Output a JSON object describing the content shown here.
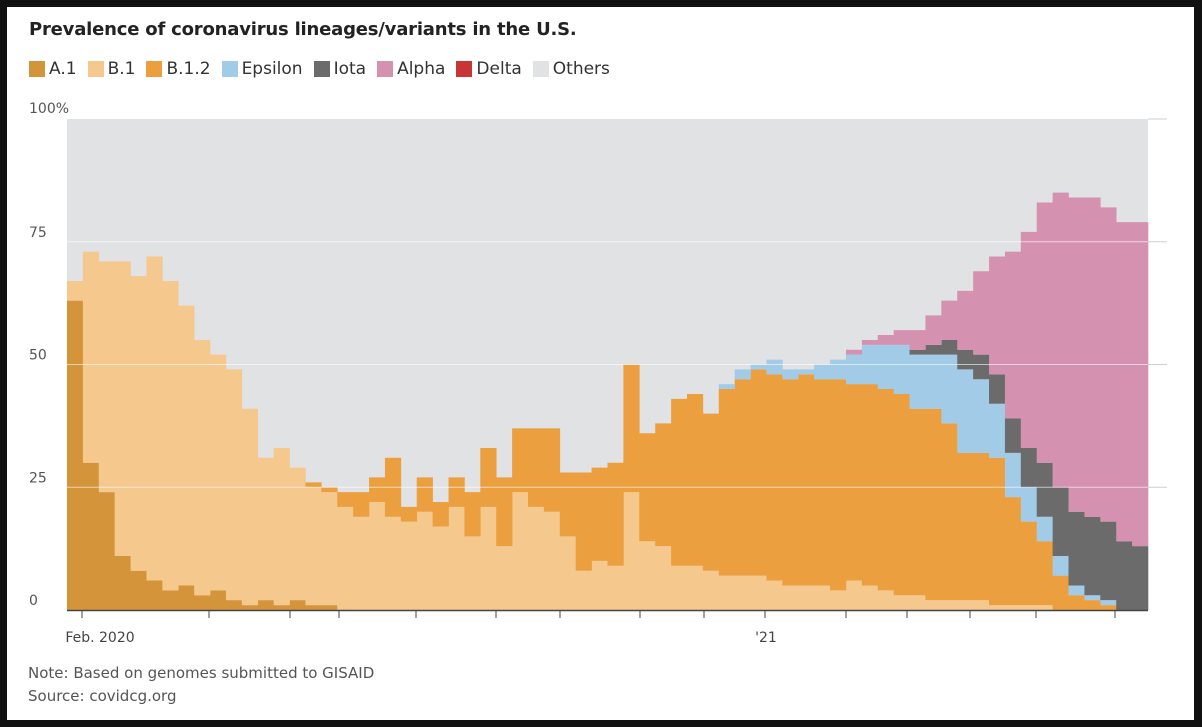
{
  "chart_data": {
    "type": "area",
    "title": "Prevalence of coronavirus lineages/variants in the U.S.",
    "x_tick_labels": [
      "Feb. 2020",
      "'21"
    ],
    "y_ticks": [
      {
        "value": 0,
        "label": "0"
      },
      {
        "value": 25,
        "label": "25"
      },
      {
        "value": 50,
        "label": "50"
      },
      {
        "value": 75,
        "label": "75"
      },
      {
        "value": 100,
        "label": "100%"
      }
    ],
    "ylim": [
      0,
      100
    ],
    "grid": true,
    "legend_position": "top-left",
    "series": [
      {
        "name": "A.1",
        "color": "#d4953a",
        "values": [
          63,
          30,
          24,
          11,
          8,
          6,
          4,
          5,
          3,
          4,
          2,
          1,
          2,
          1,
          2,
          1,
          1,
          0,
          0,
          0,
          0,
          0,
          0,
          0,
          0,
          0,
          0,
          0,
          0,
          0,
          0,
          0,
          0,
          0,
          0,
          0,
          0,
          0,
          0,
          0,
          0,
          0,
          0,
          0,
          0,
          0,
          0,
          0,
          0,
          0,
          0,
          0,
          0,
          0,
          0,
          0,
          0,
          0,
          0,
          0,
          0,
          0,
          0,
          0,
          0,
          0,
          0,
          0
        ]
      },
      {
        "name": "B.1",
        "color": "#f5c88d",
        "values": [
          4,
          43,
          47,
          60,
          60,
          66,
          63,
          57,
          52,
          48,
          47,
          40,
          29,
          32,
          27,
          24,
          23,
          21,
          19,
          22,
          19,
          18,
          20,
          17,
          21,
          15,
          21,
          13,
          24,
          21,
          20,
          15,
          8,
          10,
          9,
          24,
          14,
          13,
          9,
          9,
          8,
          7,
          7,
          7,
          6,
          5,
          5,
          5,
          4,
          6,
          5,
          4,
          3,
          3,
          2,
          2,
          2,
          2,
          1,
          1,
          1,
          1,
          0,
          0,
          0,
          0,
          0,
          0
        ]
      },
      {
        "name": "B.1.2",
        "color": "#ec9f3e",
        "values": [
          0,
          0,
          0,
          0,
          0,
          0,
          0,
          0,
          0,
          0,
          0,
          0,
          0,
          0,
          0,
          1,
          1,
          3,
          5,
          5,
          12,
          3,
          7,
          5,
          6,
          9,
          12,
          14,
          13,
          16,
          17,
          13,
          20,
          19,
          21,
          26,
          22,
          25,
          34,
          35,
          32,
          38,
          40,
          42,
          42,
          42,
          43,
          42,
          43,
          40,
          41,
          41,
          41,
          38,
          39,
          36,
          30,
          30,
          30,
          22,
          17,
          13,
          7,
          3,
          2,
          1,
          0,
          0
        ]
      },
      {
        "name": "Epsilon",
        "color": "#a2cbe8",
        "values": [
          0,
          0,
          0,
          0,
          0,
          0,
          0,
          0,
          0,
          0,
          0,
          0,
          0,
          0,
          0,
          0,
          0,
          0,
          0,
          0,
          0,
          0,
          0,
          0,
          0,
          0,
          0,
          0,
          0,
          0,
          0,
          0,
          0,
          0,
          0,
          0,
          0,
          0,
          0,
          0,
          0,
          1,
          2,
          1,
          3,
          2,
          1,
          3,
          4,
          6,
          8,
          9,
          10,
          11,
          11,
          14,
          17,
          15,
          11,
          9,
          7,
          5,
          4,
          2,
          1,
          1,
          0,
          0
        ]
      },
      {
        "name": "Iota",
        "color": "#6b6b6b",
        "values": [
          0,
          0,
          0,
          0,
          0,
          0,
          0,
          0,
          0,
          0,
          0,
          0,
          0,
          0,
          0,
          0,
          0,
          0,
          0,
          0,
          0,
          0,
          0,
          0,
          0,
          0,
          0,
          0,
          0,
          0,
          0,
          0,
          0,
          0,
          0,
          0,
          0,
          0,
          0,
          0,
          0,
          0,
          0,
          0,
          0,
          0,
          0,
          0,
          0,
          0,
          0,
          0,
          0,
          1,
          2,
          3,
          4,
          5,
          6,
          7,
          8,
          11,
          14,
          15,
          16,
          16,
          14,
          13
        ]
      },
      {
        "name": "Alpha",
        "color": "#d492b0",
        "values": [
          0,
          0,
          0,
          0,
          0,
          0,
          0,
          0,
          0,
          0,
          0,
          0,
          0,
          0,
          0,
          0,
          0,
          0,
          0,
          0,
          0,
          0,
          0,
          0,
          0,
          0,
          0,
          0,
          0,
          0,
          0,
          0,
          0,
          0,
          0,
          0,
          0,
          0,
          0,
          0,
          0,
          0,
          0,
          0,
          0,
          0,
          0,
          0,
          0,
          1,
          1,
          2,
          3,
          4,
          6,
          8,
          12,
          17,
          24,
          34,
          44,
          53,
          60,
          64,
          65,
          64,
          65,
          66
        ]
      },
      {
        "name": "Delta",
        "color": "#c93537",
        "values": [
          0,
          0,
          0,
          0,
          0,
          0,
          0,
          0,
          0,
          0,
          0,
          0,
          0,
          0,
          0,
          0,
          0,
          0,
          0,
          0,
          0,
          0,
          0,
          0,
          0,
          0,
          0,
          0,
          0,
          0,
          0,
          0,
          0,
          0,
          0,
          0,
          0,
          0,
          0,
          0,
          0,
          0,
          0,
          0,
          0,
          0,
          0,
          0,
          0,
          0,
          0,
          0,
          0,
          0,
          0,
          0,
          0,
          0,
          0,
          0,
          0,
          0,
          0,
          0,
          0,
          0,
          0,
          0
        ]
      },
      {
        "name": "Others",
        "color": "#e1e2e4",
        "values": []
      }
    ]
  },
  "note": "Note: Based on genomes submitted to GISAID",
  "source": "Source: covidcg.org"
}
